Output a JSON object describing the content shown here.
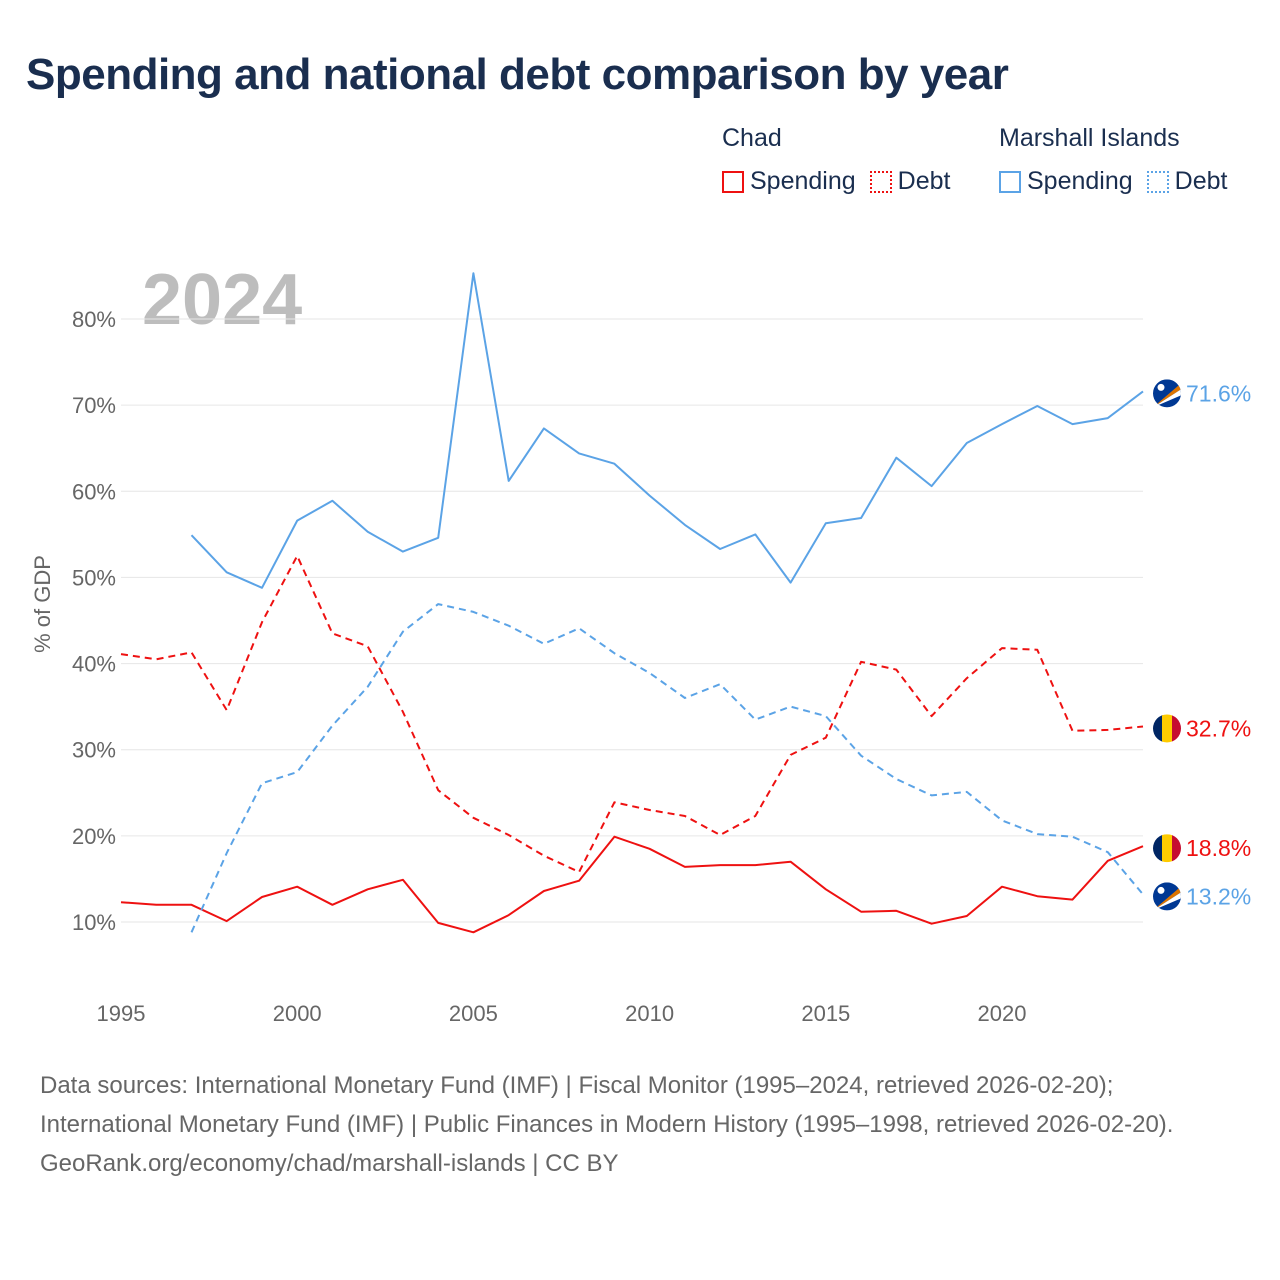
{
  "title": "Spending and national debt comparison by year",
  "legend": {
    "groups": [
      {
        "country": "Chad",
        "items": [
          "Spending",
          "Debt"
        ],
        "color": "#ee1111"
      },
      {
        "country": "Marshall Islands",
        "items": [
          "Spending",
          "Debt"
        ],
        "color": "#5ba3e6"
      }
    ]
  },
  "footer": {
    "sources": "Data sources: International Monetary Fund (IMF) | Fiscal Monitor (1995–2024, retrieved 2026-02-20); International Monetary Fund (IMF) | Public Finances in Modern History (1995–1998, retrieved 2026-02-20).",
    "credit": "GeoRank.org/economy/chad/marshall-islands | CC BY"
  },
  "chart_data": {
    "type": "line",
    "title": "Spending and national debt comparison by year",
    "year_label": "2024",
    "xlabel": "",
    "ylabel": "% of GDP",
    "xlim": [
      1995,
      2024
    ],
    "ylim": [
      10,
      80
    ],
    "x_ticks": [
      "1995",
      "2000",
      "2005",
      "2010",
      "2015",
      "2020"
    ],
    "y_ticks": [
      "10%",
      "20%",
      "30%",
      "40%",
      "50%",
      "60%",
      "70%",
      "80%"
    ],
    "grid": true,
    "x": [
      1995,
      1996,
      1997,
      1998,
      1999,
      2000,
      2001,
      2002,
      2003,
      2004,
      2005,
      2006,
      2007,
      2008,
      2009,
      2010,
      2011,
      2012,
      2013,
      2014,
      2015,
      2016,
      2017,
      2018,
      2019,
      2020,
      2021,
      2022,
      2023,
      2024
    ],
    "series": [
      {
        "name": "Chad Spending",
        "color": "#ee1111",
        "dash": false,
        "end_label": "18.8%",
        "values": [
          12.3,
          12.0,
          12.0,
          10.1,
          12.9,
          14.1,
          12.0,
          13.8,
          14.9,
          9.9,
          8.8,
          10.8,
          13.6,
          14.8,
          19.9,
          18.5,
          16.4,
          16.6,
          16.6,
          17.0,
          13.8,
          11.2,
          11.3,
          9.8,
          10.7,
          14.1,
          13.0,
          12.6,
          17.1,
          18.8
        ]
      },
      {
        "name": "Chad Debt",
        "color": "#ee1111",
        "dash": true,
        "end_label": "32.7%",
        "values": [
          41.1,
          40.5,
          41.3,
          34.6,
          44.8,
          52.5,
          43.5,
          42.0,
          34.4,
          25.3,
          22.1,
          20.1,
          17.7,
          15.8,
          23.9,
          23.0,
          22.3,
          20.1,
          22.3,
          29.4,
          31.4,
          40.2,
          39.3,
          33.9,
          38.3,
          41.8,
          41.6,
          32.2,
          32.3,
          32.7
        ]
      },
      {
        "name": "Marshall Islands Spending",
        "color": "#5ba3e6",
        "dash": false,
        "end_label": "71.6%",
        "values": [
          null,
          null,
          54.9,
          50.6,
          48.8,
          56.6,
          58.9,
          55.3,
          53.0,
          54.6,
          85.3,
          61.2,
          67.3,
          64.4,
          63.2,
          59.5,
          56.1,
          53.3,
          55.0,
          49.4,
          56.3,
          56.9,
          63.9,
          60.6,
          65.6,
          67.8,
          69.9,
          67.8,
          68.5,
          71.6
        ]
      },
      {
        "name": "Marshall Islands Debt",
        "color": "#5ba3e6",
        "dash": true,
        "end_label": "13.2%",
        "values": [
          null,
          null,
          8.8,
          18.0,
          26.1,
          27.4,
          32.8,
          37.3,
          43.7,
          46.9,
          46.0,
          44.4,
          42.3,
          44.1,
          41.2,
          38.9,
          36.0,
          37.6,
          33.5,
          35.0,
          33.9,
          29.3,
          26.6,
          24.7,
          25.1,
          21.8,
          20.2,
          19.9,
          18.1,
          13.2
        ]
      }
    ]
  }
}
